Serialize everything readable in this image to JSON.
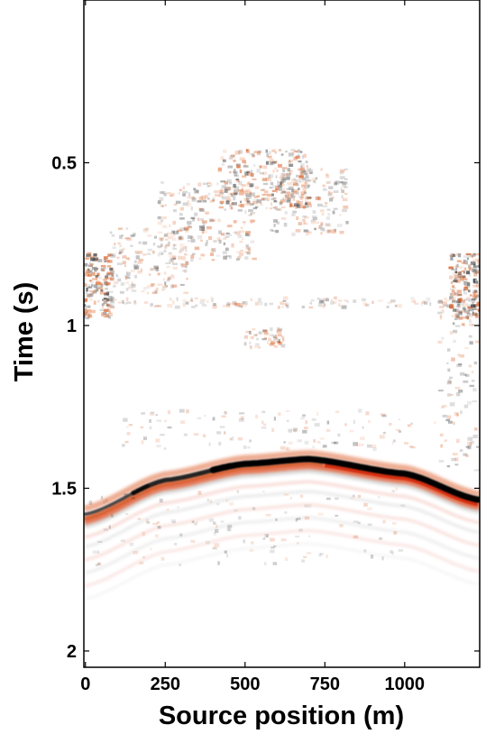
{
  "chart_data": {
    "type": "heatmap",
    "title": "",
    "xlabel": "Source position (m)",
    "ylabel": "Time (s)",
    "xlim": [
      -5,
      1235
    ],
    "ylim": [
      0.0,
      2.05
    ],
    "y_inverted": true,
    "grid": false,
    "x_ticks": [
      {
        "value": 0,
        "label": "0"
      },
      {
        "value": 250,
        "label": "250"
      },
      {
        "value": 500,
        "label": "500"
      },
      {
        "value": 750,
        "label": "750"
      },
      {
        "value": 1000,
        "label": "1000"
      }
    ],
    "y_ticks": [
      {
        "value": 0.5,
        "label": "0.5"
      },
      {
        "value": 1.0,
        "label": "1"
      },
      {
        "value": 1.5,
        "label": "1.5"
      },
      {
        "value": 2.0,
        "label": "2"
      }
    ],
    "colormap": {
      "negative": "#000000",
      "zero": "#ffffff",
      "positive": "#d42a08"
    },
    "main_event": {
      "description_points": [
        {
          "x": 0,
          "t": 1.58
        },
        {
          "x": 250,
          "t": 1.475
        },
        {
          "x": 500,
          "t": 1.425
        },
        {
          "x": 700,
          "t": 1.41
        },
        {
          "x": 1000,
          "t": 1.455
        },
        {
          "x": 1230,
          "t": 1.535
        }
      ]
    }
  }
}
